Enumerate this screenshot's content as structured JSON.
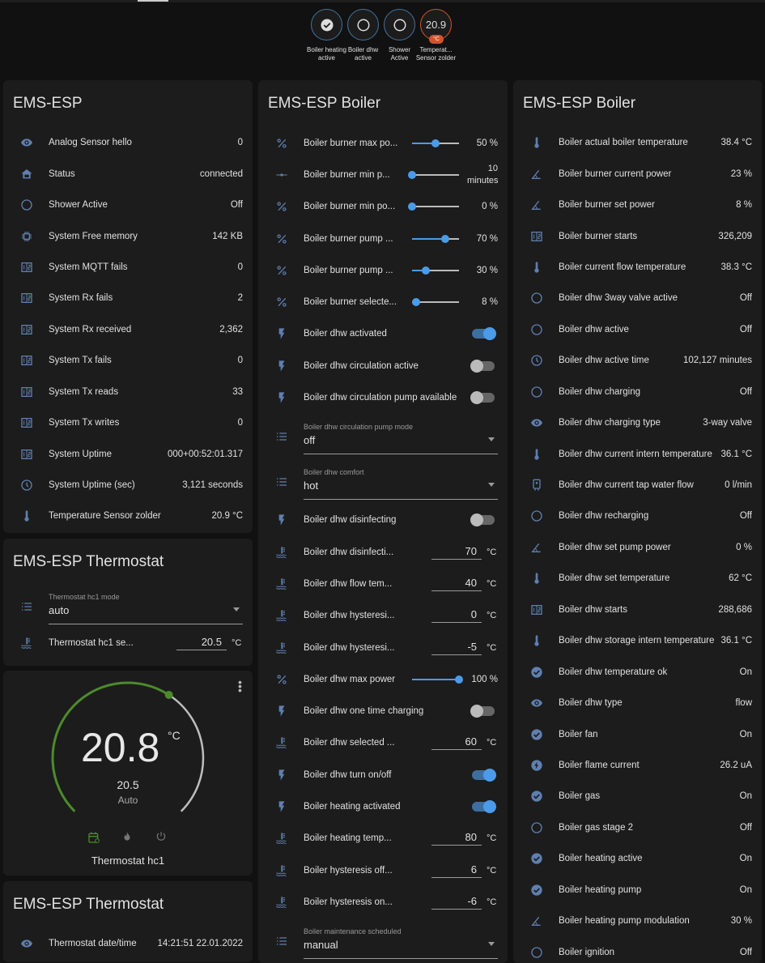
{
  "colors": {
    "accent": "#4b9be8",
    "icon": "#5f7fae",
    "heat": "#4c8b2b",
    "badge_temp": "#d4532a"
  },
  "badges": [
    {
      "label": "Boiler heating active",
      "icon": "check-circle-icon"
    },
    {
      "label": "Boiler dhw active",
      "icon": "circle-outline-icon"
    },
    {
      "label": "Shower Active",
      "icon": "circle-outline-icon"
    },
    {
      "label": "Temperat... Sensor zolder",
      "value": "20.9",
      "unit": "°C"
    }
  ],
  "card1": {
    "title": "EMS-ESP",
    "rows": [
      {
        "t": "s",
        "icon": "eye",
        "label": "Analog Sensor hello",
        "value": "0"
      },
      {
        "t": "s",
        "icon": "home",
        "label": "Status",
        "value": "connected"
      },
      {
        "t": "s",
        "icon": "circle",
        "label": "Shower Active",
        "value": "Off"
      },
      {
        "t": "s",
        "icon": "chip",
        "label": "System Free memory",
        "value": "142 KB"
      },
      {
        "t": "s",
        "icon": "counter",
        "label": "System MQTT fails",
        "value": "0"
      },
      {
        "t": "s",
        "icon": "counter",
        "label": "System Rx fails",
        "value": "2"
      },
      {
        "t": "s",
        "icon": "counter",
        "label": "System Rx received",
        "value": "2,362"
      },
      {
        "t": "s",
        "icon": "counter",
        "label": "System Tx fails",
        "value": "0"
      },
      {
        "t": "s",
        "icon": "counter",
        "label": "System Tx reads",
        "value": "33"
      },
      {
        "t": "s",
        "icon": "counter",
        "label": "System Tx writes",
        "value": "0"
      },
      {
        "t": "s",
        "icon": "counter",
        "label": "System Uptime",
        "value": "000+00:52:01.317"
      },
      {
        "t": "s",
        "icon": "clock",
        "label": "System Uptime (sec)",
        "value": "3,121 seconds"
      },
      {
        "t": "s",
        "icon": "thermometer",
        "label": "Temperature Sensor zolder",
        "value": "20.9 °C"
      }
    ]
  },
  "card2": {
    "title": "EMS-ESP Thermostat",
    "rows": [
      {
        "t": "sel",
        "icon": "list",
        "label": "Thermostat hc1 mode",
        "value": "auto"
      },
      {
        "t": "n",
        "icon": "water-temp",
        "label": "Thermostat hc1 se...",
        "value": "20.5",
        "unit": "°C"
      }
    ]
  },
  "climate": {
    "current": "20.8",
    "unit": "°C",
    "target": "20.5",
    "mode": "Auto",
    "name": "Thermostat hc1",
    "modes": [
      "schedule",
      "heat",
      "off"
    ]
  },
  "card4": {
    "title": "EMS-ESP Thermostat",
    "rows": [
      {
        "t": "s",
        "icon": "eye",
        "label": "Thermostat date/time",
        "value": "14:21:51 22.01.2022"
      }
    ]
  },
  "card5": {
    "title": "EMS-ESP Boiler",
    "rows": [
      {
        "t": "sl",
        "icon": "percent",
        "label": "Boiler burner max po...",
        "pct": 50,
        "value": "50 %"
      },
      {
        "t": "sl",
        "icon": "slider",
        "label": "Boiler burner min p...",
        "pct": 0,
        "value": "10 minutes"
      },
      {
        "t": "sl",
        "icon": "percent",
        "label": "Boiler burner min po...",
        "pct": 0,
        "value": "0 %"
      },
      {
        "t": "sl",
        "icon": "percent",
        "label": "Boiler burner pump ...",
        "pct": 70,
        "value": "70 %"
      },
      {
        "t": "sl",
        "icon": "percent",
        "label": "Boiler burner pump ...",
        "pct": 30,
        "value": "30 %"
      },
      {
        "t": "sl",
        "icon": "percent",
        "label": "Boiler burner selecte...",
        "pct": 8,
        "value": "8 %"
      },
      {
        "t": "tg",
        "icon": "flash",
        "label": "Boiler dhw activated",
        "on": true
      },
      {
        "t": "tg",
        "icon": "flash",
        "label": "Boiler dhw circulation active",
        "on": false
      },
      {
        "t": "tg",
        "icon": "flash",
        "label": "Boiler dhw circulation pump available",
        "on": false
      },
      {
        "t": "sel",
        "icon": "list",
        "label": "Boiler dhw circulation pump mode",
        "value": "off"
      },
      {
        "t": "sel",
        "icon": "list",
        "label": "Boiler dhw comfort",
        "value": "hot"
      },
      {
        "t": "tg",
        "icon": "flash",
        "label": "Boiler dhw disinfecting",
        "on": false
      },
      {
        "t": "n",
        "icon": "water-temp",
        "label": "Boiler dhw disinfecti...",
        "value": "70",
        "unit": "°C"
      },
      {
        "t": "n",
        "icon": "water-temp",
        "label": "Boiler dhw flow tem...",
        "value": "40",
        "unit": "°C"
      },
      {
        "t": "n",
        "icon": "water-temp",
        "label": "Boiler dhw hysteresi...",
        "value": "0",
        "unit": "°C"
      },
      {
        "t": "n",
        "icon": "water-temp",
        "label": "Boiler dhw hysteresi...",
        "value": "-5",
        "unit": "°C"
      },
      {
        "t": "sl",
        "icon": "percent",
        "label": "Boiler dhw max power",
        "pct": 100,
        "value": "100 %"
      },
      {
        "t": "tg",
        "icon": "flash",
        "label": "Boiler dhw one time charging",
        "on": false
      },
      {
        "t": "n",
        "icon": "water-temp",
        "label": "Boiler dhw selected ...",
        "value": "60",
        "unit": "°C"
      },
      {
        "t": "tg",
        "icon": "flash",
        "label": "Boiler dhw turn on/off",
        "on": true
      },
      {
        "t": "tg",
        "icon": "flash",
        "label": "Boiler heating activated",
        "on": true
      },
      {
        "t": "n",
        "icon": "water-temp",
        "label": "Boiler heating temp...",
        "value": "80",
        "unit": "°C"
      },
      {
        "t": "n",
        "icon": "water-temp",
        "label": "Boiler hysteresis off...",
        "value": "6",
        "unit": "°C"
      },
      {
        "t": "n",
        "icon": "water-temp",
        "label": "Boiler hysteresis on...",
        "value": "-6",
        "unit": "°C"
      },
      {
        "t": "sel",
        "icon": "list",
        "label": "Boiler maintenance scheduled",
        "value": "manual"
      }
    ]
  },
  "card6": {
    "title": "EMS-ESP Boiler",
    "rows": [
      {
        "t": "s",
        "icon": "thermometer",
        "label": "Boiler actual boiler temperature",
        "value": "38.4 °C"
      },
      {
        "t": "s",
        "icon": "angle",
        "label": "Boiler burner current power",
        "value": "23 %"
      },
      {
        "t": "s",
        "icon": "angle",
        "label": "Boiler burner set power",
        "value": "8 %"
      },
      {
        "t": "s",
        "icon": "counter",
        "label": "Boiler burner starts",
        "value": "326,209"
      },
      {
        "t": "s",
        "icon": "thermometer",
        "label": "Boiler current flow temperature",
        "value": "38.3 °C"
      },
      {
        "t": "s",
        "icon": "circle",
        "label": "Boiler dhw 3way valve active",
        "value": "Off"
      },
      {
        "t": "s",
        "icon": "circle",
        "label": "Boiler dhw active",
        "value": "Off"
      },
      {
        "t": "s",
        "icon": "clock",
        "label": "Boiler dhw active time",
        "value": "102,127 minutes"
      },
      {
        "t": "s",
        "icon": "circle",
        "label": "Boiler dhw charging",
        "value": "Off"
      },
      {
        "t": "s",
        "icon": "eye",
        "label": "Boiler dhw charging type",
        "value": "3-way valve"
      },
      {
        "t": "s",
        "icon": "thermometer",
        "label": "Boiler dhw current intern temperature",
        "value": "36.1 °C"
      },
      {
        "t": "s",
        "icon": "meter",
        "label": "Boiler dhw current tap water flow",
        "value": "0 l/min"
      },
      {
        "t": "s",
        "icon": "circle",
        "label": "Boiler dhw recharging",
        "value": "Off"
      },
      {
        "t": "s",
        "icon": "angle",
        "label": "Boiler dhw set pump power",
        "value": "0 %"
      },
      {
        "t": "s",
        "icon": "thermometer",
        "label": "Boiler dhw set temperature",
        "value": "62 °C"
      },
      {
        "t": "s",
        "icon": "counter",
        "label": "Boiler dhw starts",
        "value": "288,686"
      },
      {
        "t": "s",
        "icon": "thermometer",
        "label": "Boiler dhw storage intern temperature",
        "value": "36.1 °C"
      },
      {
        "t": "s",
        "icon": "check",
        "label": "Boiler dhw temperature ok",
        "value": "On"
      },
      {
        "t": "s",
        "icon": "eye",
        "label": "Boiler dhw type",
        "value": "flow"
      },
      {
        "t": "s",
        "icon": "check",
        "label": "Boiler fan",
        "value": "On"
      },
      {
        "t": "s",
        "icon": "bolt-circle",
        "label": "Boiler flame current",
        "value": "26.2 uA"
      },
      {
        "t": "s",
        "icon": "check",
        "label": "Boiler gas",
        "value": "On"
      },
      {
        "t": "s",
        "icon": "circle",
        "label": "Boiler gas stage 2",
        "value": "Off"
      },
      {
        "t": "s",
        "icon": "check",
        "label": "Boiler heating active",
        "value": "On"
      },
      {
        "t": "s",
        "icon": "check",
        "label": "Boiler heating pump",
        "value": "On"
      },
      {
        "t": "s",
        "icon": "angle",
        "label": "Boiler heating pump modulation",
        "value": "30 %"
      },
      {
        "t": "s",
        "icon": "circle",
        "label": "Boiler ignition",
        "value": "Off"
      }
    ]
  }
}
